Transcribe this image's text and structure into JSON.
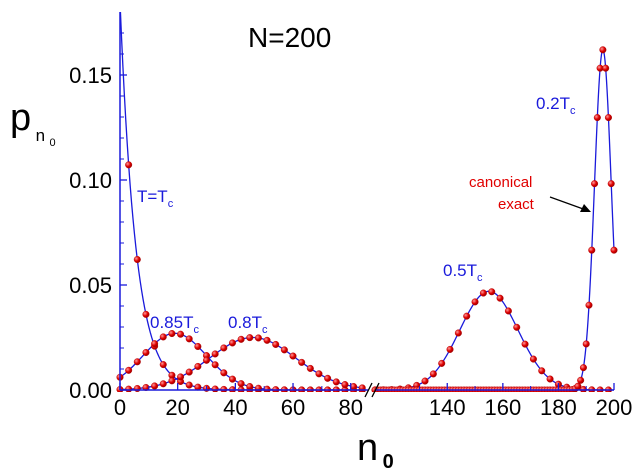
{
  "chart_data": {
    "type": "line",
    "title": "N=200",
    "ylabel_main": "p",
    "ylabel_sub": "n",
    "ylabel_subsub": "0",
    "xlabel_main": "n",
    "xlabel_sub": "0",
    "xaxis_break": true,
    "xlim_left": [
      0,
      86
    ],
    "xlim_right": [
      114,
      200
    ],
    "ylim": [
      0,
      0.18
    ],
    "xticks_left": [
      0,
      20,
      40,
      60,
      80
    ],
    "xticks_right": [
      140,
      160,
      180,
      200
    ],
    "yticks": [
      0.0,
      0.05,
      0.1,
      0.15
    ],
    "ytick_labels": [
      "0.00",
      "0.05",
      "0.10",
      "0.15"
    ],
    "colors": {
      "line": "#1a1adb",
      "points": "#e00000",
      "axis": "#1a1adb"
    },
    "series": [
      {
        "label": "T=T",
        "label_sub": "c",
        "kind": "exponential",
        "p0": 0.185,
        "scale": 5.5,
        "xmax": 85
      },
      {
        "label": "0.85T",
        "label_sub": "c",
        "kind": "gaussian",
        "mu": 19,
        "sigma": 11,
        "peak": 0.027,
        "xmin": 0,
        "xmax": 85
      },
      {
        "label": "0.8T",
        "label_sub": "c",
        "kind": "gaussian",
        "mu": 46,
        "sigma": 15,
        "peak": 0.025,
        "xmin": 0,
        "xmax": 85
      },
      {
        "label": "0.5T",
        "label_sub": "c",
        "kind": "gaussian",
        "mu": 155,
        "sigma": 10.5,
        "peak": 0.047,
        "xmin": 114,
        "xmax": 200
      },
      {
        "label": "0.2T",
        "label_sub": "c",
        "kind": "gaussian",
        "mu": 196,
        "sigma": 3.0,
        "peak": 0.162,
        "xmin": 114,
        "xmax": 200
      }
    ],
    "annotation": {
      "line1": "canonical",
      "line2": "exact"
    }
  }
}
